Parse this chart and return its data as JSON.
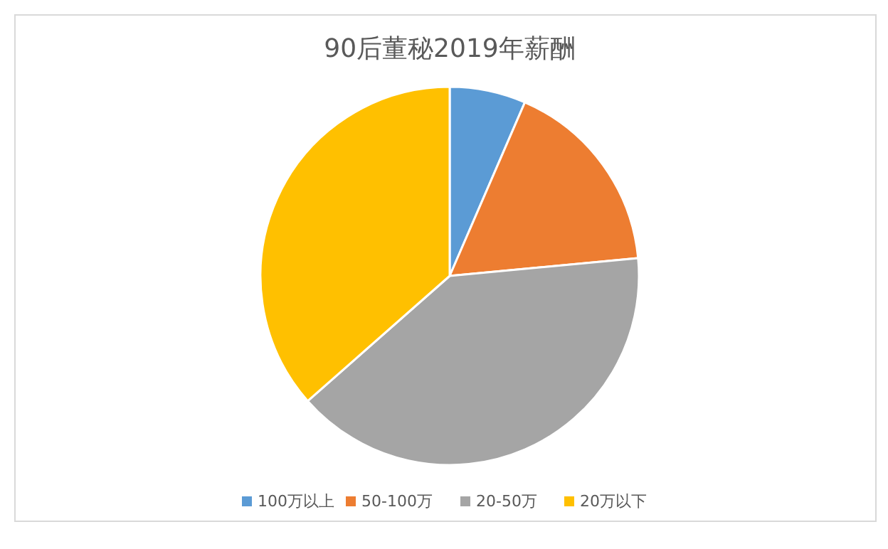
{
  "chart_data": {
    "type": "pie",
    "title": "90后董秘2019年薪酬",
    "categories": [
      "100万以上",
      "50-100万",
      "20-50万",
      "20万以下"
    ],
    "values": [
      6.5,
      17,
      40,
      36.5
    ],
    "colors": [
      "#5b9bd5",
      "#ed7d31",
      "#a5a5a5",
      "#ffc000"
    ],
    "legend": "bottom"
  }
}
